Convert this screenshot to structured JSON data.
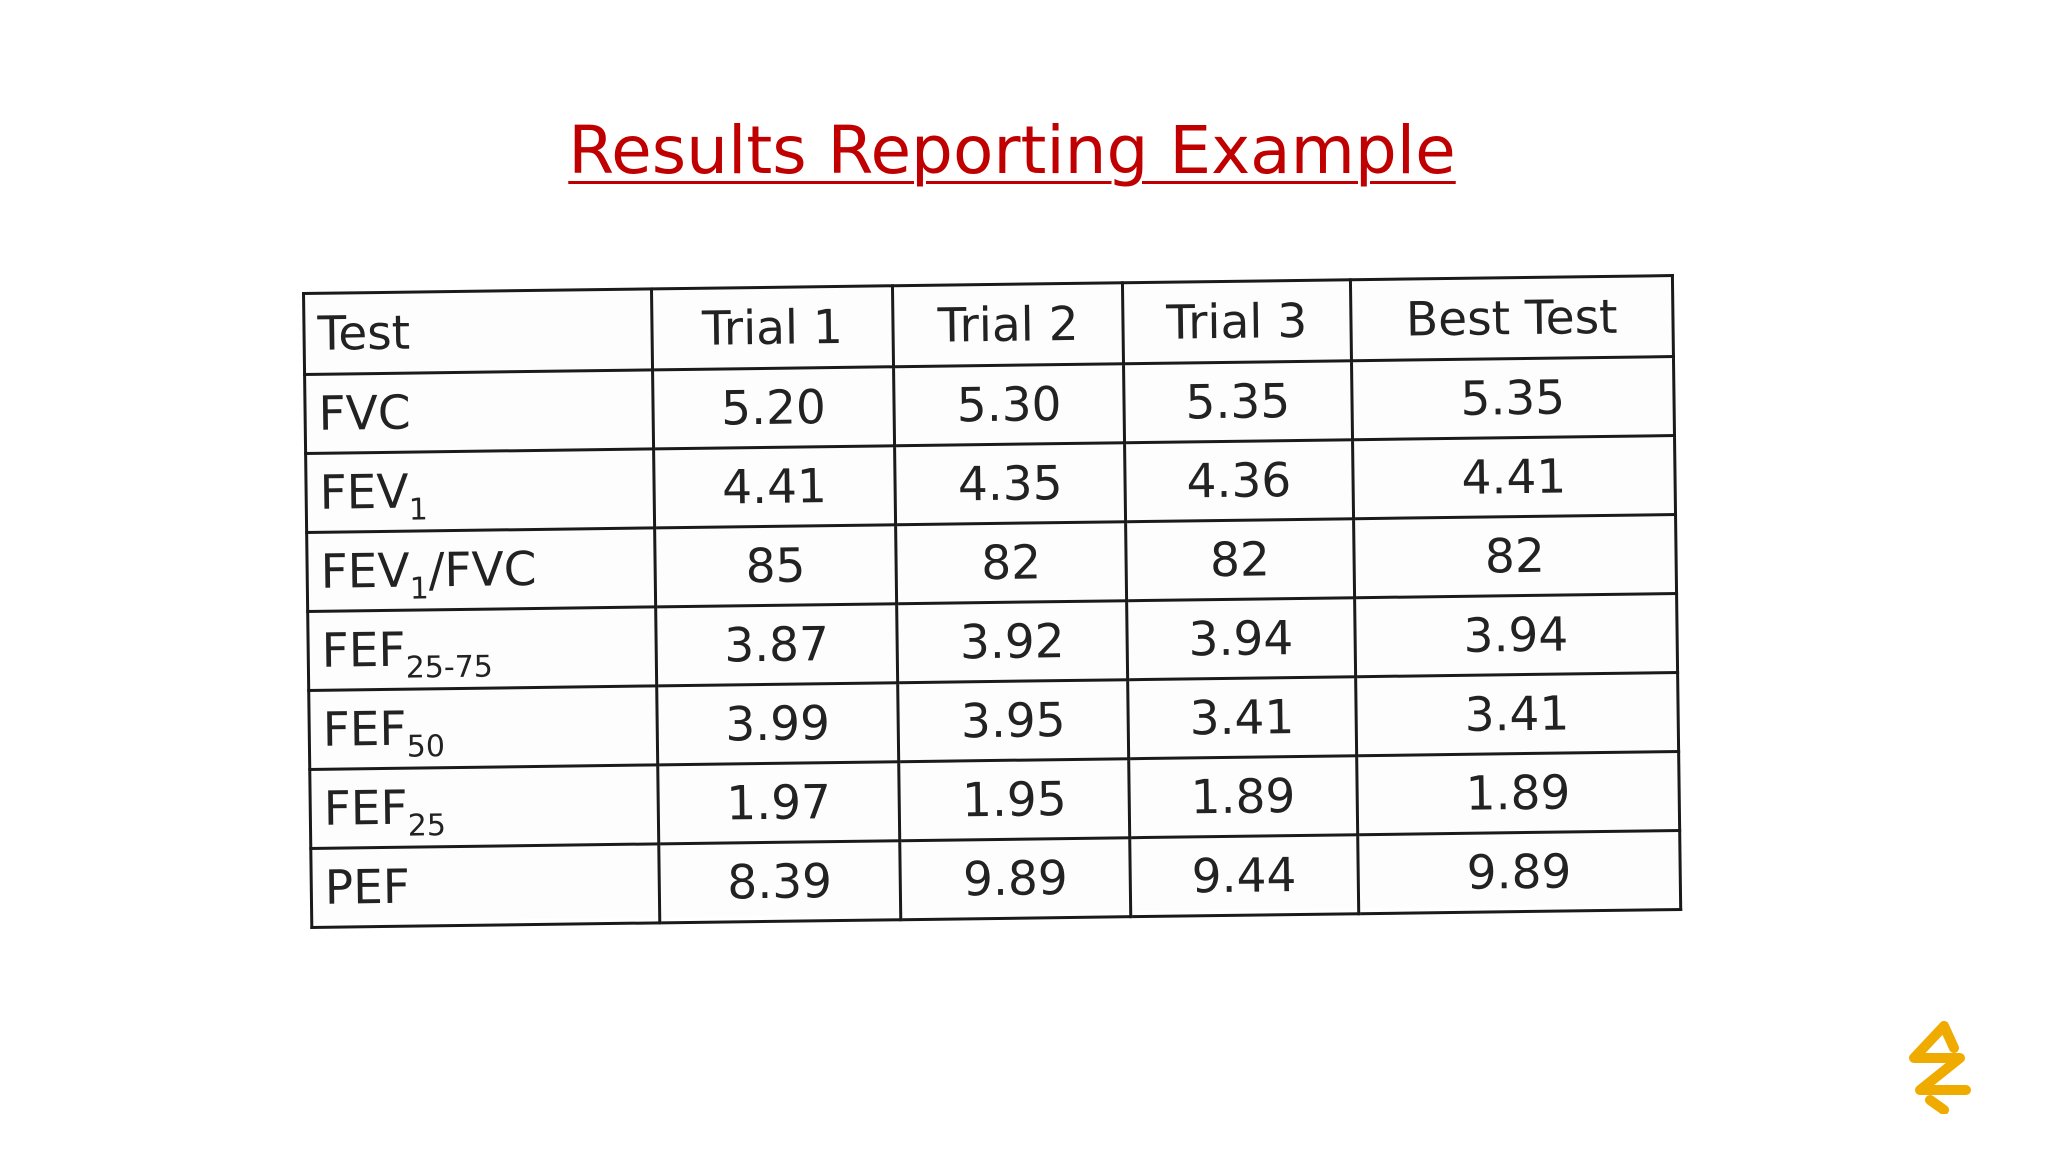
{
  "slide": {
    "title": "Results Reporting Example"
  },
  "table": {
    "headers": [
      "Test",
      "Trial 1",
      "Trial 2",
      "Trial 3",
      "Best Test"
    ],
    "rows": [
      {
        "label": "FVC",
        "sub": "",
        "suffix": "",
        "values": [
          "5.20",
          "5.30",
          "5.35",
          "5.35"
        ]
      },
      {
        "label": "FEV",
        "sub": "1",
        "suffix": "",
        "values": [
          "4.41",
          "4.35",
          "4.36",
          "4.41"
        ]
      },
      {
        "label": "FEV",
        "sub": "1",
        "suffix": "/FVC",
        "values": [
          "85",
          "82",
          "82",
          "82"
        ]
      },
      {
        "label": "FEF",
        "sub": "25-75",
        "suffix": "",
        "values": [
          "3.87",
          "3.92",
          "3.94",
          "3.94"
        ]
      },
      {
        "label": "FEF",
        "sub": "50",
        "suffix": "",
        "values": [
          "3.99",
          "3.95",
          "3.41",
          "3.41"
        ]
      },
      {
        "label": "FEF",
        "sub": "25",
        "suffix": "",
        "values": [
          "1.97",
          "1.95",
          "1.89",
          "1.89"
        ]
      },
      {
        "label": "PEF",
        "sub": "",
        "suffix": "",
        "values": [
          "8.39",
          "9.89",
          "9.44",
          "9.89"
        ]
      }
    ]
  },
  "colors": {
    "title": "#c00000",
    "logo": "#f0ab00"
  },
  "icons": {
    "logo": "company-logo-icon"
  }
}
